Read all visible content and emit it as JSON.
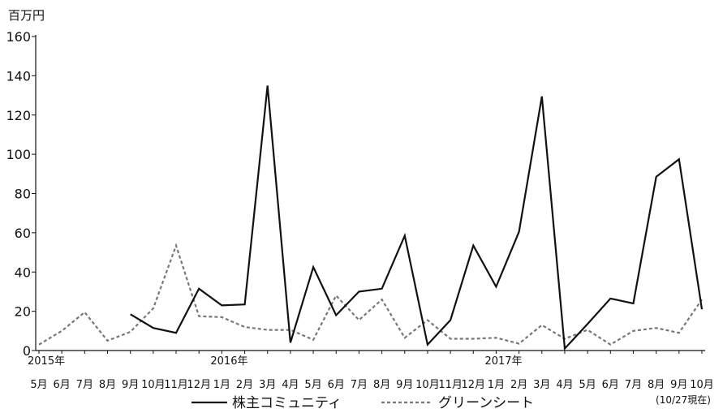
{
  "chart_data": {
    "type": "line",
    "unit_label": "百万円",
    "ylim": [
      0,
      160
    ],
    "yticks": [
      0,
      20,
      40,
      60,
      80,
      100,
      120,
      140,
      160
    ],
    "grid": false,
    "legend_position": "bottom",
    "categories": [
      "5月",
      "6月",
      "7月",
      "8月",
      "9月",
      "10月",
      "11月",
      "12月",
      "1月",
      "2月",
      "3月",
      "4月",
      "5月",
      "6月",
      "7月",
      "8月",
      "9月",
      "10月",
      "11月",
      "12月",
      "1月",
      "2月",
      "3月",
      "4月",
      "5月",
      "6月",
      "7月",
      "8月",
      "9月",
      "10月"
    ],
    "year_labels": [
      {
        "index": 0,
        "text": "2015年"
      },
      {
        "index": 8,
        "text": "2016年"
      },
      {
        "index": 20,
        "text": "2017年"
      }
    ],
    "as_of_note": "(10/27現在)",
    "series": [
      {
        "name": "株主コミュニティ",
        "style": "solid",
        "color": "#111111",
        "values": [
          null,
          null,
          null,
          null,
          18.5,
          11.5,
          9,
          31.5,
          23,
          23.5,
          135,
          4,
          42.5,
          18,
          30,
          31.5,
          58.5,
          3,
          15.5,
          53.5,
          32.5,
          60.5,
          129.5,
          1,
          13.5,
          26.5,
          24,
          88.5,
          97.5,
          21
        ]
      },
      {
        "name": "グリーンシート",
        "style": "dashed",
        "color": "#777777",
        "values": [
          3,
          10,
          19.5,
          5,
          9.5,
          21.5,
          53.5,
          17.5,
          17,
          12,
          10.5,
          10.5,
          5.5,
          28,
          15.5,
          26,
          6.5,
          15.5,
          6,
          6,
          6.5,
          3.5,
          13,
          6,
          10.5,
          3,
          10,
          11.5,
          9,
          26
        ]
      }
    ]
  }
}
